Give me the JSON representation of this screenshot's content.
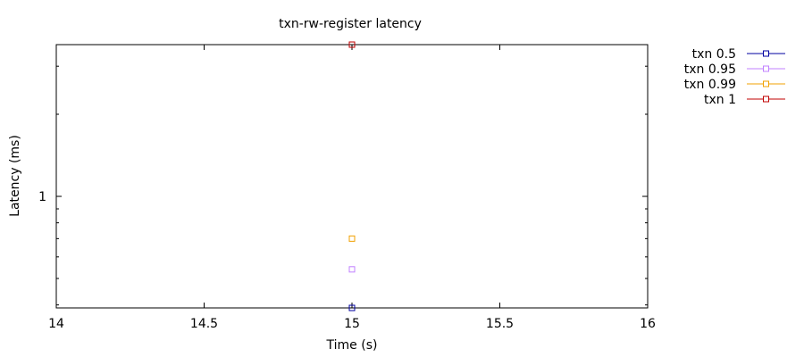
{
  "chart_data": {
    "type": "scatter",
    "title": "txn-rw-register latency",
    "xlabel": "Time (s)",
    "ylabel": "Latency (ms)",
    "xlim": [
      14,
      16
    ],
    "ylim": [
      0.39,
      3.6
    ],
    "y_scale": "log",
    "grid": false,
    "legend_position": "outside-top-right",
    "x_ticks": [
      14,
      14.5,
      15,
      15.5,
      16
    ],
    "x_tick_labels": [
      "14",
      "14.5",
      "15",
      "15.5",
      "16"
    ],
    "y_ticks": [
      1
    ],
    "y_tick_labels": [
      "1"
    ],
    "series": [
      {
        "name": "txn 0.5",
        "color": "#0000a0",
        "x": [
          15
        ],
        "y": [
          0.39
        ]
      },
      {
        "name": "txn 0.95",
        "color": "#c080ff",
        "x": [
          15
        ],
        "y": [
          0.54
        ]
      },
      {
        "name": "txn 0.99",
        "color": "#f0a000",
        "x": [
          15
        ],
        "y": [
          0.7
        ]
      },
      {
        "name": "txn 1",
        "color": "#c00000",
        "x": [
          15
        ],
        "y": [
          3.6
        ]
      }
    ]
  }
}
